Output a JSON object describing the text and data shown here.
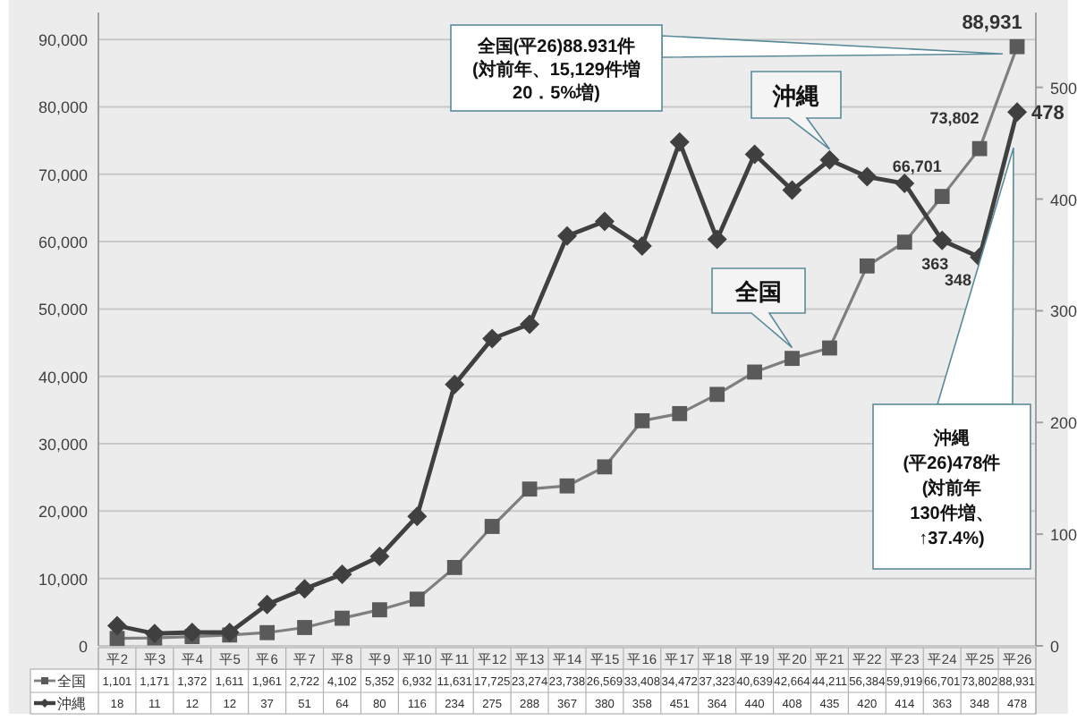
{
  "chart_data": {
    "type": "line",
    "categories": [
      "平2",
      "平3",
      "平4",
      "平5",
      "平6",
      "平7",
      "平8",
      "平9",
      "平10",
      "平11",
      "平12",
      "平13",
      "平14",
      "平15",
      "平16",
      "平17",
      "平18",
      "平19",
      "平20",
      "平21",
      "平22",
      "平23",
      "平24",
      "平25",
      "平26"
    ],
    "series": [
      {
        "name": "全国",
        "color": "#7f7f7f",
        "marker": "square",
        "values": [
          1101,
          1171,
          1372,
          1611,
          1961,
          2722,
          4102,
          5352,
          6932,
          11631,
          17725,
          23274,
          23738,
          26569,
          33408,
          34472,
          37323,
          40639,
          42664,
          44211,
          56384,
          59919,
          66701,
          73802,
          88931
        ],
        "value_labels": [
          "1,101",
          "1,171",
          "1,372",
          "1,611",
          "1,961",
          "2,722",
          "4,102",
          "5,352",
          "6,932",
          "11,631",
          "17,725",
          "23,274",
          "23,738",
          "26,569",
          "33,408",
          "34,472",
          "37,323",
          "40,639",
          "42,664",
          "44,211",
          "56,384",
          "59,919",
          "66,701",
          "73,802",
          "88,931"
        ]
      },
      {
        "name": "沖縄",
        "color": "#404040",
        "marker": "diamond",
        "axis": "y2",
        "values": [
          18,
          11,
          12,
          12,
          37,
          51,
          64,
          80,
          116,
          234,
          275,
          288,
          367,
          380,
          358,
          451,
          364,
          440,
          408,
          435,
          420,
          414,
          363,
          348,
          478
        ],
        "value_labels": [
          "18",
          "11",
          "12",
          "12",
          "37",
          "51",
          "64",
          "80",
          "116",
          "234",
          "275",
          "288",
          "367",
          "380",
          "358",
          "451",
          "364",
          "440",
          "408",
          "435",
          "420",
          "414",
          "363",
          "348",
          "478"
        ]
      }
    ],
    "ylim": [
      0,
      94000
    ],
    "yticks": [
      {
        "value": 0,
        "label": "0"
      },
      {
        "value": 10000,
        "label": "10,000"
      },
      {
        "value": 20000,
        "label": "20,000"
      },
      {
        "value": 30000,
        "label": "30,000"
      },
      {
        "value": 40000,
        "label": "40,000"
      },
      {
        "value": 50000,
        "label": "50,000"
      },
      {
        "value": 60000,
        "label": "60,000"
      },
      {
        "value": 70000,
        "label": "70,000"
      },
      {
        "value": 80000,
        "label": "80,000"
      },
      {
        "value": 90000,
        "label": "90,000"
      }
    ],
    "y2lim": [
      0,
      567
    ],
    "y2ticks": [
      0,
      100,
      200,
      300,
      400,
      500
    ],
    "grid": "y",
    "legend": "bottom",
    "annotations": [
      "全国(平26)88.931件\n(対前年、15,129件増\n20．5%増)",
      "沖縄\n(平26)478件\n(対前年\n130件増、\n↑37.4%)"
    ]
  }
}
